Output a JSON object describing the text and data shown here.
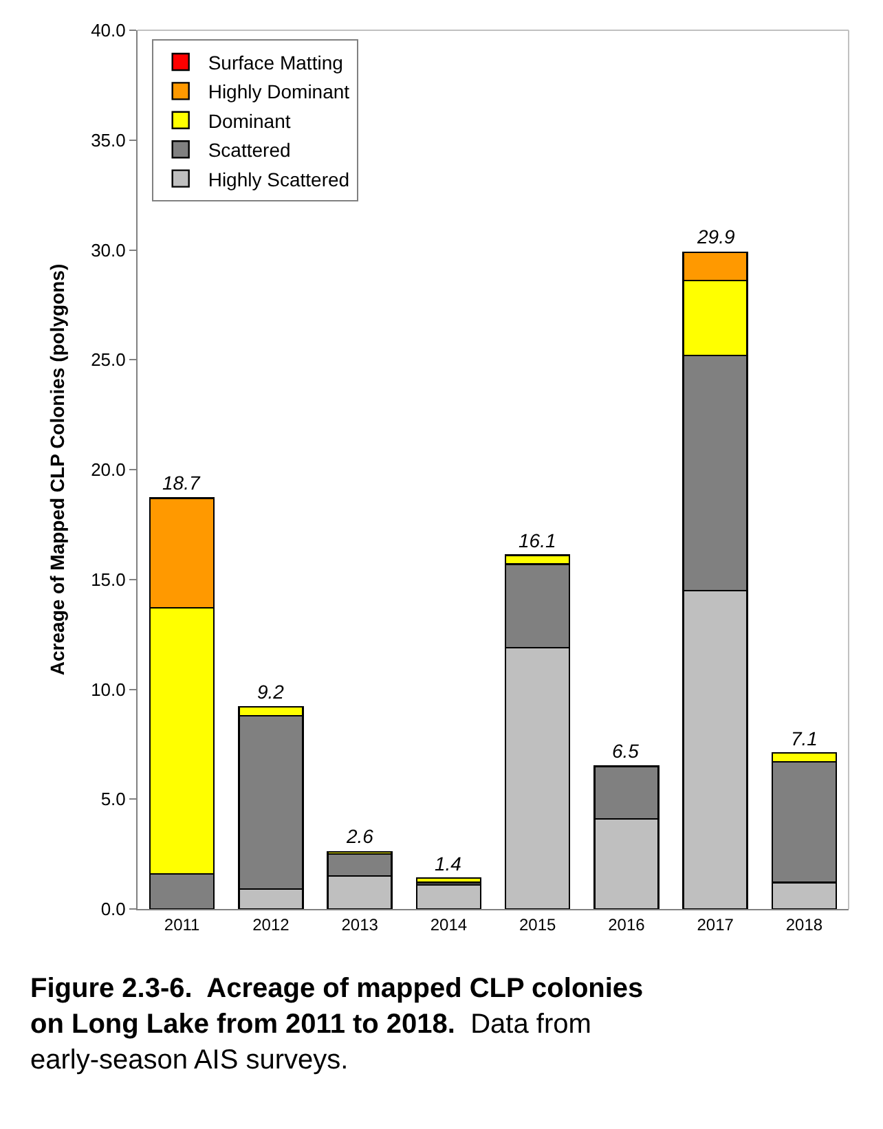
{
  "chart_data": {
    "type": "bar",
    "stacked": true,
    "ylabel": "Acreage of Mapped CLP Colonies (polygons)",
    "categories": [
      "2011",
      "2012",
      "2013",
      "2014",
      "2015",
      "2016",
      "2017",
      "2018"
    ],
    "series": [
      {
        "name": "Highly Scattered",
        "color": "#bfbfbf",
        "values": [
          null,
          0.9,
          1.5,
          1.1,
          11.9,
          4.1,
          14.5,
          1.2
        ]
      },
      {
        "name": "Scattered",
        "color": "#808080",
        "values": [
          1.6,
          7.9,
          1.0,
          0.1,
          3.8,
          2.4,
          10.7,
          5.5
        ]
      },
      {
        "name": "Dominant",
        "color": "#ffff00",
        "values": [
          12.1,
          0.4,
          0.1,
          0.2,
          0.4,
          null,
          3.4,
          0.4
        ]
      },
      {
        "name": "Highly Dominant",
        "color": "#ff9900",
        "values": [
          5.0,
          null,
          null,
          null,
          null,
          null,
          1.3,
          null
        ]
      },
      {
        "name": "Surface Matting",
        "color": "#ff0000",
        "values": [
          null,
          null,
          null,
          null,
          null,
          null,
          null,
          null
        ]
      }
    ],
    "totals": [
      "18.7",
      "9.2",
      "2.6",
      "1.4",
      "16.1",
      "6.5",
      "29.9",
      "7.1"
    ],
    "ylim": [
      0,
      40
    ],
    "yticks": [
      {
        "value": 0,
        "label": "0.0"
      },
      {
        "value": 5,
        "label": "5.0"
      },
      {
        "value": 10,
        "label": "10.0"
      },
      {
        "value": 15,
        "label": "15.0"
      },
      {
        "value": 20,
        "label": "20.0"
      },
      {
        "value": 25,
        "label": "25.0"
      },
      {
        "value": 30,
        "label": "30.0"
      },
      {
        "value": 35,
        "label": "35.0"
      },
      {
        "value": 40,
        "label": "40.0"
      }
    ],
    "legend": "top left",
    "annotations": [
      "Figure 2.3-6.  Acreage of mapped CLP colonies on Long Lake from 2011 to 2018.",
      "Data from early-season AIS surveys."
    ]
  }
}
